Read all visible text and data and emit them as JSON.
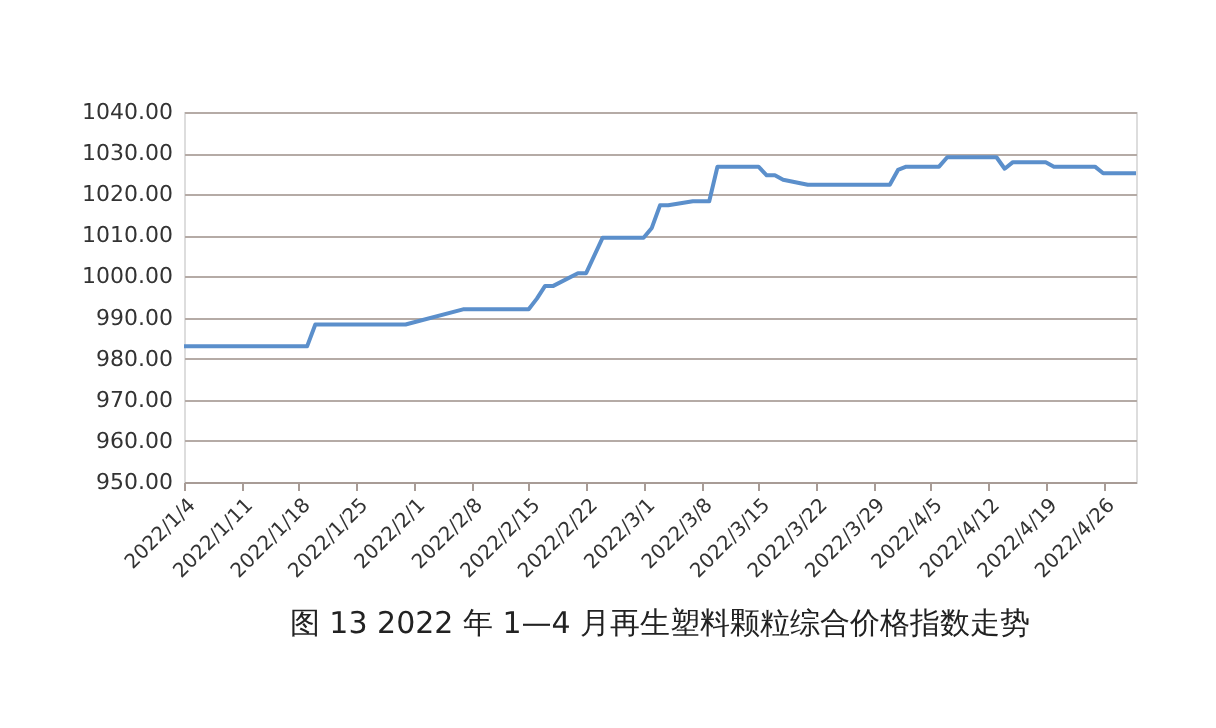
{
  "chart_data": {
    "type": "line",
    "title": "图 13  2022 年 1—4 月再生塑料颗粒综合价格指数走势",
    "x": [
      "2022-01-04",
      "2022-01-19",
      "2022-01-20",
      "2022-01-31",
      "2022-02-07",
      "2022-02-15",
      "2022-02-16",
      "2022-02-17",
      "2022-02-18",
      "2022-02-21",
      "2022-02-22",
      "2022-02-24",
      "2022-03-01",
      "2022-03-02",
      "2022-03-03",
      "2022-03-04",
      "2022-03-07",
      "2022-03-09",
      "2022-03-10",
      "2022-03-15",
      "2022-03-16",
      "2022-03-17",
      "2022-03-18",
      "2022-03-21",
      "2022-03-31",
      "2022-04-01",
      "2022-04-02",
      "2022-04-06",
      "2022-04-07",
      "2022-04-13",
      "2022-04-14",
      "2022-04-15",
      "2022-04-19",
      "2022-04-20",
      "2022-04-25",
      "2022-04-26",
      "2022-04-30"
    ],
    "series": [
      {
        "color": "#5b8fcb",
        "values": [
          983,
          983,
          988.3,
          988.3,
          992,
          992,
          994.6,
          997.7,
          997.7,
          1000.8,
          1000.8,
          1009.4,
          1009.4,
          1011.8,
          1017.3,
          1017.3,
          1018.3,
          1018.3,
          1026.7,
          1026.7,
          1024.6,
          1024.6,
          1023.5,
          1022.3,
          1022.3,
          1025.9,
          1026.7,
          1026.7,
          1029,
          1029,
          1026.2,
          1027.8,
          1027.8,
          1026.7,
          1026.7,
          1025.1,
          1025.1
        ]
      }
    ],
    "xlim": [
      "2022-01-04",
      "2022-04-30"
    ],
    "xticks": [
      {
        "value": "2022-01-04",
        "label": "2022/1/4"
      },
      {
        "value": "2022-01-11",
        "label": "2022/1/11"
      },
      {
        "value": "2022-01-18",
        "label": "2022/1/18"
      },
      {
        "value": "2022-01-25",
        "label": "2022/1/25"
      },
      {
        "value": "2022-02-01",
        "label": "2022/2/1"
      },
      {
        "value": "2022-02-08",
        "label": "2022/2/8"
      },
      {
        "value": "2022-02-15",
        "label": "2022/2/15"
      },
      {
        "value": "2022-02-22",
        "label": "2022/2/22"
      },
      {
        "value": "2022-03-01",
        "label": "2022/3/1"
      },
      {
        "value": "2022-03-08",
        "label": "2022/3/8"
      },
      {
        "value": "2022-03-15",
        "label": "2022/3/15"
      },
      {
        "value": "2022-03-22",
        "label": "2022/3/22"
      },
      {
        "value": "2022-03-29",
        "label": "2022/3/29"
      },
      {
        "value": "2022-04-05",
        "label": "2022/4/5"
      },
      {
        "value": "2022-04-12",
        "label": "2022/4/12"
      },
      {
        "value": "2022-04-19",
        "label": "2022/4/19"
      },
      {
        "value": "2022-04-26",
        "label": "2022/4/26"
      }
    ],
    "ylim": [
      950,
      1040
    ],
    "yticks": [
      {
        "value": 950,
        "label": "950.00"
      },
      {
        "value": 960,
        "label": "960.00"
      },
      {
        "value": 970,
        "label": "970.00"
      },
      {
        "value": 980,
        "label": "980.00"
      },
      {
        "value": 990,
        "label": "990.00"
      },
      {
        "value": 1000,
        "label": "1000.00"
      },
      {
        "value": 1010,
        "label": "1010.00"
      },
      {
        "value": 1020,
        "label": "1020.00"
      },
      {
        "value": 1030,
        "label": "1030.00"
      },
      {
        "value": 1040,
        "label": "1040.00"
      }
    ],
    "grid": "y",
    "marker": "none",
    "line_style": "solid"
  }
}
